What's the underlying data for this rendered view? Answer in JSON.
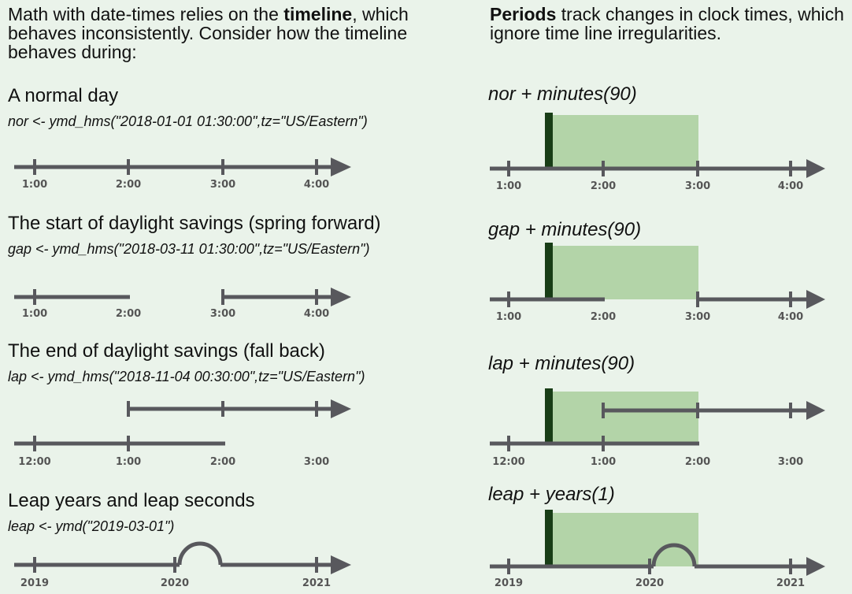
{
  "left": {
    "intro": {
      "pre": "Math with date-times relies on the ",
      "bold": "timeline",
      "post": ", which behaves inconsistently.  Consider how the timeline behaves during:"
    },
    "sections": [
      {
        "heading": "A normal day",
        "code": "nor <- ymd_hms(\"2018-01-01 01:30:00\",tz=\"US/Eastern\")",
        "ticks": [
          "1:00",
          "2:00",
          "3:00",
          "4:00"
        ]
      },
      {
        "heading": "The start of daylight savings (spring forward)",
        "code": "gap <- ymd_hms(\"2018-03-11 01:30:00\",tz=\"US/Eastern\")",
        "ticks": [
          "1:00",
          "2:00",
          "3:00",
          "4:00"
        ]
      },
      {
        "heading": "The end of daylight savings (fall back)",
        "code": "lap <- ymd_hms(\"2018-11-04 00:30:00\",tz=\"US/Eastern\")",
        "ticks": [
          "12:00",
          "1:00",
          "2:00",
          "3:00"
        ]
      },
      {
        "heading": "Leap years and leap seconds",
        "code": "leap <- ymd(\"2019-03-01\")",
        "ticks": [
          "2019",
          "2020",
          "2021"
        ]
      }
    ]
  },
  "right": {
    "intro": {
      "bold": "Periods",
      "post": " track changes in clock times, which ignore time line irregularities."
    },
    "sections": [
      {
        "heading": "nor + minutes(90)",
        "ticks": [
          "1:00",
          "2:00",
          "3:00",
          "4:00"
        ]
      },
      {
        "heading": "gap + minutes(90)",
        "ticks": [
          "1:00",
          "2:00",
          "3:00",
          "4:00"
        ]
      },
      {
        "heading": "lap + minutes(90)",
        "ticks": [
          "12:00",
          "1:00",
          "2:00",
          "3:00"
        ]
      },
      {
        "heading": "leap + years(1)",
        "ticks": [
          "2019",
          "2020",
          "2021"
        ]
      }
    ]
  },
  "colors": {
    "background": "#eaf3ea",
    "timeline": "#58585d",
    "period_shade": "#b3d4a8",
    "start_marker": "#183d16"
  }
}
